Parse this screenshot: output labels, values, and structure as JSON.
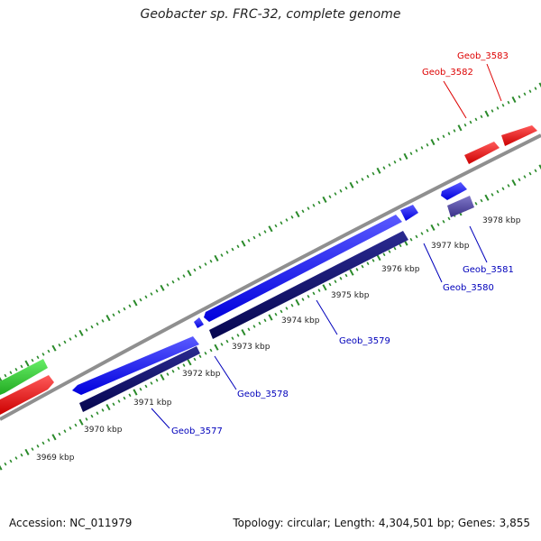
{
  "title": "Geobacter sp. FRC-32, complete genome",
  "footer": {
    "accession": "Accession: NC_011979",
    "summary": "Topology: circular; Length: 4,304,501 bp; Genes: 3,855"
  },
  "scale_labels": [
    "3969 kbp",
    "3970 kbp",
    "3971 kbp",
    "3972 kbp",
    "3973 kbp",
    "3974 kbp",
    "3975 kbp",
    "3976 kbp",
    "3977 kbp",
    "3978 kbp"
  ],
  "genes": [
    {
      "name": "Geob_3577",
      "color": "#0000aa"
    },
    {
      "name": "Geob_3578",
      "color": "#0000aa"
    },
    {
      "name": "Geob_3579",
      "color": "#0000aa"
    },
    {
      "name": "Geob_3580",
      "color": "#0000aa"
    },
    {
      "name": "Geob_3581",
      "color": "#0000aa"
    },
    {
      "name": "Geob_3582",
      "color": "#dd0000"
    },
    {
      "name": "Geob_3583",
      "color": "#dd0000"
    }
  ],
  "colors": {
    "tick": "#2a8a2a",
    "backbone": "#8f8f8f",
    "gene_blue": "#1a1aff",
    "gene_navy": "#0b0b6e",
    "gene_red": "#ee1111",
    "gene_green": "#33cc33",
    "gene_purple": "#5a4fa8"
  }
}
